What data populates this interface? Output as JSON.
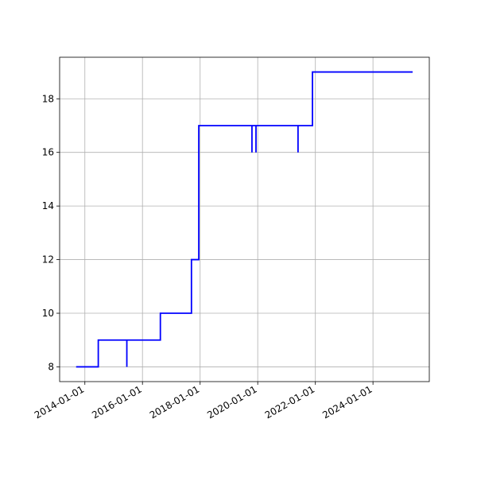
{
  "chart_data": {
    "type": "line",
    "color": "#0000ff",
    "grid": true,
    "x": [
      "2013-09-12",
      "2014-06-20",
      "2014-06-20",
      "2015-06-17",
      "2015-06-17",
      "2015-06-17",
      "2016-08-15",
      "2016-08-15",
      "2017-09-13",
      "2017-09-13",
      "2017-12-15",
      "2017-12-15",
      "2019-10-20",
      "2019-10-20",
      "2019-10-20",
      "2019-12-10",
      "2019-12-10",
      "2019-12-10",
      "2021-05-26",
      "2021-05-26",
      "2021-05-26",
      "2021-11-25",
      "2021-11-25",
      "2025-05-18"
    ],
    "values": [
      8,
      8,
      9,
      9,
      8,
      9,
      9,
      10,
      10,
      12,
      12,
      17,
      17,
      16,
      17,
      17,
      16,
      17,
      17,
      16,
      17,
      17,
      19,
      19
    ],
    "xlim": [
      "2013-02-15",
      "2025-12-15"
    ],
    "xticks": [
      "2014-01-01",
      "2016-01-01",
      "2018-01-01",
      "2020-01-01",
      "2022-01-01",
      "2024-01-01"
    ],
    "ylim": [
      7.45,
      19.55
    ],
    "yticks": [
      8,
      10,
      12,
      14,
      16,
      18
    ]
  }
}
